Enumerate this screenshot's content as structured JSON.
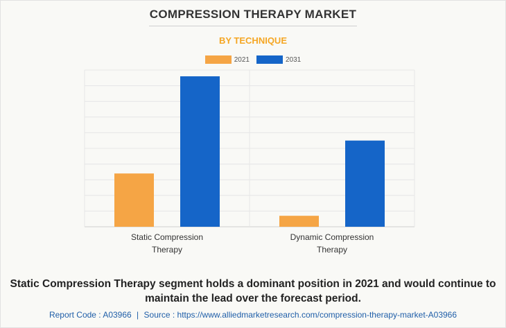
{
  "title": "COMPRESSION THERAPY MARKET",
  "subtitle": "BY TECHNIQUE",
  "colors": {
    "2021": "#f5a545",
    "2031": "#1565c8",
    "subtitle": "#f5a623"
  },
  "chart_data": {
    "type": "bar",
    "categories": [
      "Static Compression\nTherapy",
      "Dynamic Compression\nTherapy"
    ],
    "series": [
      {
        "name": "2021",
        "values": [
          3.4,
          0.7
        ]
      },
      {
        "name": "2031",
        "values": [
          9.6,
          5.5
        ]
      }
    ],
    "ylim": [
      0,
      10
    ],
    "grid": true,
    "legend": "top-center"
  },
  "caption": "Static Compression Therapy segment holds a dominant position in 2021 and would continue to maintain the lead over the forecast period.",
  "footer": {
    "report_code": "Report Code : A03966",
    "separator": "|",
    "source": "Source : https://www.alliedmarketresearch.com/compression-therapy-market-A03966"
  }
}
